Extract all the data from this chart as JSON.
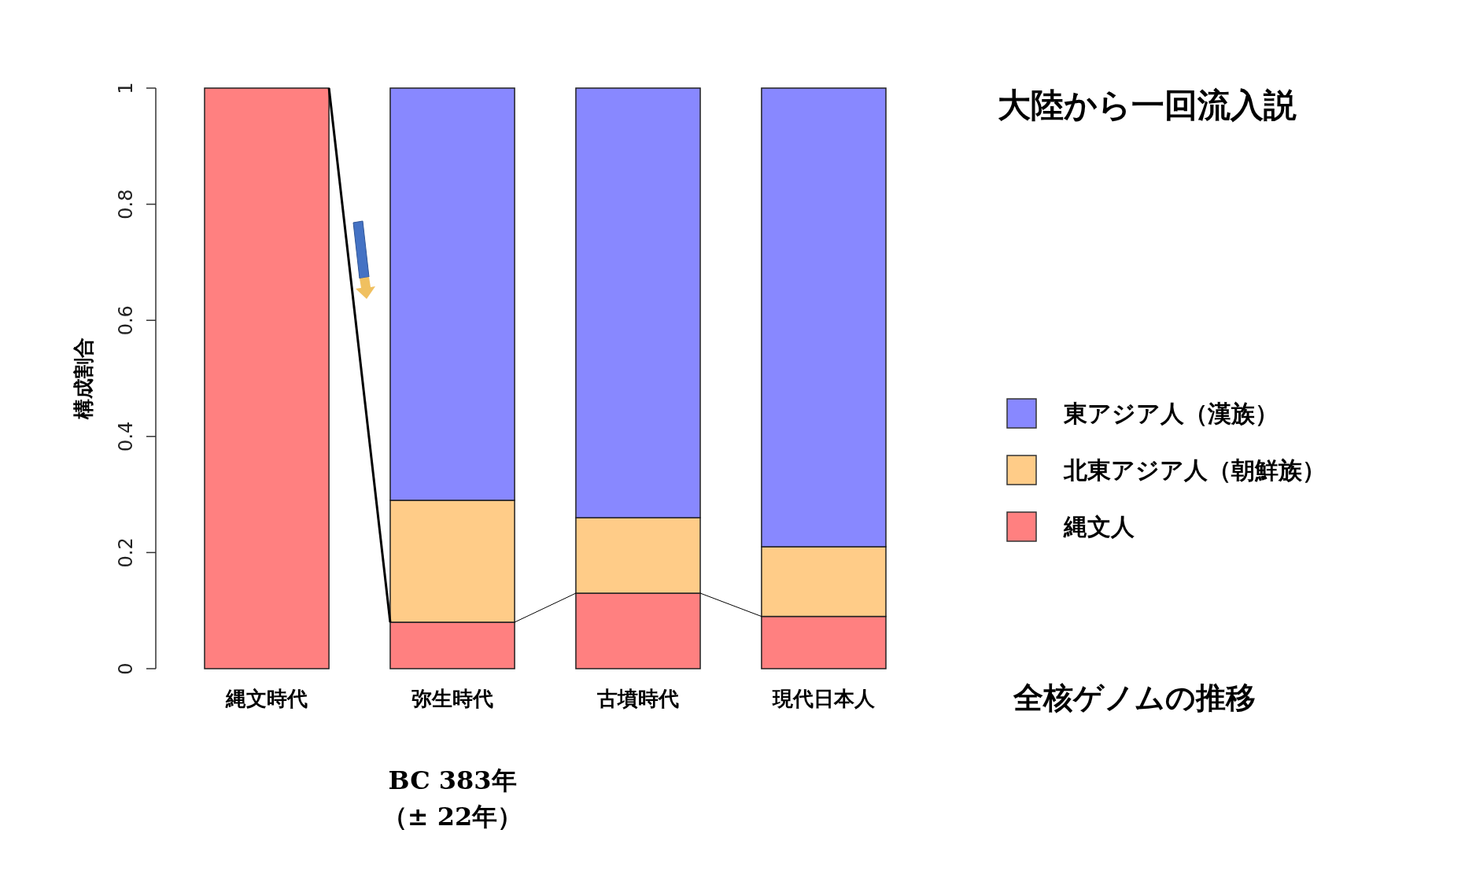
{
  "chart_data": {
    "type": "bar",
    "stacked": true,
    "title": "大陸から一回流入説",
    "ylabel": "構成割合",
    "categories": [
      "縄文時代",
      "弥生時代",
      "古墳時代",
      "現代日本人"
    ],
    "series": [
      {
        "name": "縄文人",
        "color": "#ff8080",
        "values": [
          1,
          0.08,
          0.13,
          0.09
        ]
      },
      {
        "name": "北東アジア人（朝鮮族）",
        "color": "#ffcc88",
        "values": [
          0,
          0.21,
          0.13,
          0.12
        ]
      },
      {
        "name": "東アジア人（漢族）",
        "color": "#8888ff",
        "values": [
          0,
          0.71,
          0.74,
          0.79
        ]
      }
    ],
    "ylim": [
      0,
      1
    ],
    "yticks": [
      0,
      0.2,
      0.4,
      0.6,
      0.8,
      1
    ],
    "legend": "right",
    "annotations": [
      "全核ゲノムの推移",
      "BC 383年",
      "（± 22年）"
    ]
  }
}
